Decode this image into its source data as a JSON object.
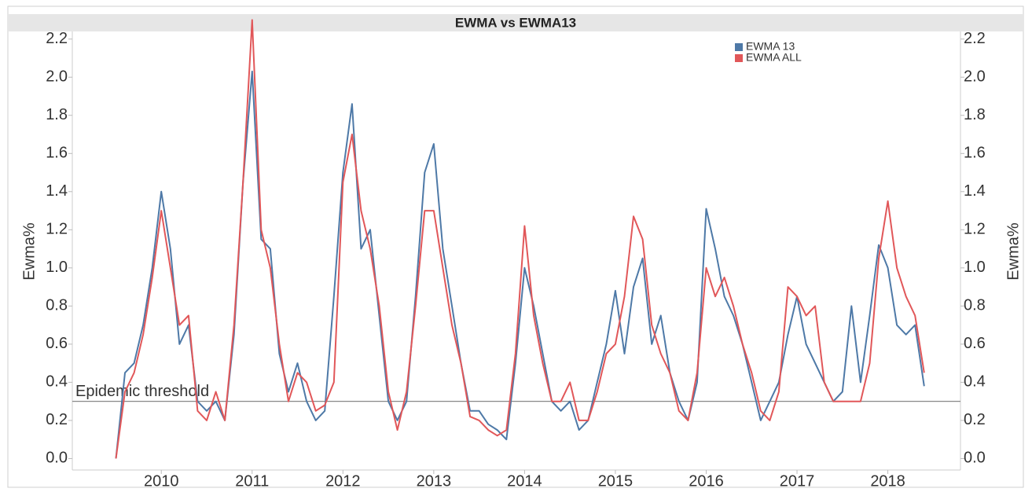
{
  "chart_data": {
    "type": "line",
    "title": "EWMA vs EWMA13",
    "y_label": "Ewma%",
    "y2_label": "Ewma%",
    "x": [
      2009.5,
      2009.6,
      2009.7,
      2009.8,
      2009.9,
      2010.0,
      2010.1,
      2010.2,
      2010.3,
      2010.4,
      2010.5,
      2010.6,
      2010.7,
      2010.8,
      2010.9,
      2011.0,
      2011.1,
      2011.2,
      2011.3,
      2011.4,
      2011.5,
      2011.6,
      2011.7,
      2011.8,
      2011.9,
      2012.0,
      2012.1,
      2012.2,
      2012.3,
      2012.4,
      2012.5,
      2012.6,
      2012.7,
      2012.8,
      2012.9,
      2013.0,
      2013.1,
      2013.2,
      2013.3,
      2013.4,
      2013.5,
      2013.6,
      2013.7,
      2013.8,
      2013.9,
      2014.0,
      2014.1,
      2014.2,
      2014.3,
      2014.4,
      2014.5,
      2014.6,
      2014.7,
      2014.8,
      2014.9,
      2015.0,
      2015.1,
      2015.2,
      2015.3,
      2015.4,
      2015.5,
      2015.6,
      2015.7,
      2015.8,
      2015.9,
      2016.0,
      2016.1,
      2016.2,
      2016.3,
      2016.4,
      2016.5,
      2016.6,
      2016.7,
      2016.8,
      2016.9,
      2017.0,
      2017.1,
      2017.2,
      2017.3,
      2017.4,
      2017.5,
      2017.6,
      2017.7,
      2017.8,
      2017.9,
      2018.0,
      2018.1,
      2018.2,
      2018.3,
      2018.4
    ],
    "series": [
      {
        "name": "EWMA 13",
        "color": "#4e79a7",
        "values": [
          0,
          0.45,
          0.5,
          0.7,
          1.0,
          1.4,
          1.1,
          0.6,
          0.7,
          0.3,
          0.25,
          0.3,
          0.2,
          0.65,
          1.45,
          2.03,
          1.15,
          1.1,
          0.55,
          0.35,
          0.5,
          0.3,
          0.2,
          0.25,
          0.85,
          1.5,
          1.86,
          1.1,
          1.2,
          0.75,
          0.3,
          0.2,
          0.3,
          0.85,
          1.5,
          1.65,
          1.1,
          0.8,
          0.5,
          0.25,
          0.25,
          0.18,
          0.15,
          0.1,
          0.5,
          1.0,
          0.8,
          0.55,
          0.3,
          0.25,
          0.3,
          0.15,
          0.2,
          0.4,
          0.6,
          0.88,
          0.55,
          0.9,
          1.05,
          0.6,
          0.75,
          0.45,
          0.3,
          0.2,
          0.4,
          1.31,
          1.1,
          0.85,
          0.75,
          0.6,
          0.4,
          0.2,
          0.3,
          0.4,
          0.65,
          0.85,
          0.6,
          0.5,
          0.4,
          0.3,
          0.35,
          0.8,
          0.4,
          0.75,
          1.12,
          1.0,
          0.7,
          0.65,
          0.7,
          0.38
        ]
      },
      {
        "name": "EWMA ALL",
        "color": "#e15759",
        "values": [
          0,
          0.35,
          0.45,
          0.65,
          0.95,
          1.3,
          1.0,
          0.7,
          0.75,
          0.25,
          0.2,
          0.35,
          0.2,
          0.7,
          1.45,
          2.3,
          1.2,
          1.0,
          0.6,
          0.3,
          0.45,
          0.4,
          0.25,
          0.28,
          0.4,
          1.45,
          1.7,
          1.3,
          1.1,
          0.8,
          0.35,
          0.15,
          0.35,
          0.8,
          1.3,
          1.3,
          1.0,
          0.7,
          0.5,
          0.22,
          0.2,
          0.15,
          0.12,
          0.15,
          0.55,
          1.22,
          0.75,
          0.5,
          0.3,
          0.3,
          0.4,
          0.2,
          0.2,
          0.35,
          0.55,
          0.6,
          0.85,
          1.27,
          1.15,
          0.7,
          0.55,
          0.45,
          0.25,
          0.2,
          0.45,
          1.0,
          0.85,
          0.95,
          0.8,
          0.6,
          0.45,
          0.25,
          0.2,
          0.35,
          0.9,
          0.85,
          0.75,
          0.8,
          0.4,
          0.3,
          0.3,
          0.3,
          0.3,
          0.5,
          1.05,
          1.35,
          1.0,
          0.85,
          0.75,
          0.45
        ]
      }
    ],
    "xlim": [
      2009.02,
      2018.8
    ],
    "xticks": [
      2010,
      2011,
      2012,
      2013,
      2014,
      2015,
      2016,
      2017,
      2018
    ],
    "ylim": [
      -0.06,
      2.24
    ],
    "yticks": [
      {
        "value": 0,
        "label": "0.0"
      },
      0.2,
      0.4,
      0.6,
      0.8,
      {
        "value": 1,
        "label": "1.0"
      },
      1.2,
      1.4,
      1.6,
      1.8,
      {
        "value": 2,
        "label": "2.0"
      },
      2.2
    ],
    "y2lim": [
      -0.06,
      2.24
    ],
    "y2ticks": [
      {
        "value": 0,
        "label": "0.0"
      },
      0.2,
      0.4,
      0.6,
      0.8,
      {
        "value": 1,
        "label": "1.0"
      },
      1.2,
      1.4,
      1.6,
      1.8,
      {
        "value": 2,
        "label": "2.0"
      },
      2.2
    ],
    "threshold": {
      "value": 0.3,
      "label": "Epidemic threshold"
    },
    "legend": "top-right"
  }
}
